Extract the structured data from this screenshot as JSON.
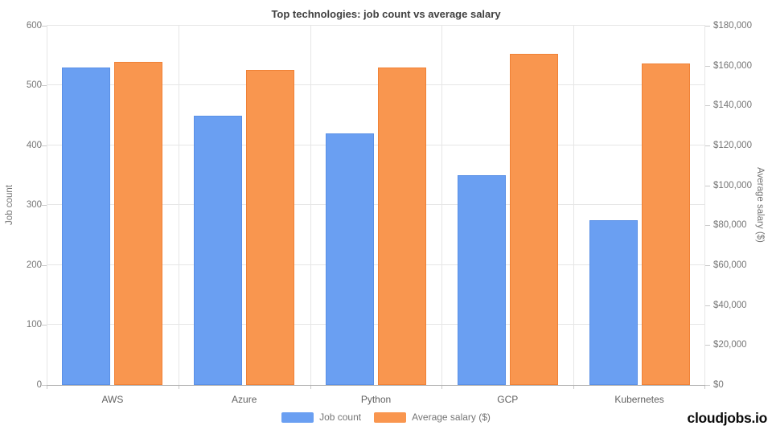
{
  "chart_data": {
    "type": "bar",
    "title": "Top technologies: job count vs average salary",
    "categories": [
      "AWS",
      "Azure",
      "Python",
      "GCP",
      "Kubernetes"
    ],
    "series": [
      {
        "name": "Job count",
        "axis": "left",
        "color": "#6A9FF2",
        "values": [
          530,
          450,
          420,
          350,
          275
        ]
      },
      {
        "name": "Average salary ($)",
        "axis": "right",
        "color": "#F9964F",
        "values": [
          162000,
          158000,
          159000,
          166000,
          161000
        ]
      }
    ],
    "left_axis": {
      "label": "Job count",
      "min": 0,
      "max": 600,
      "tick_labels": [
        "0",
        "100",
        "200",
        "300",
        "400",
        "500",
        "600"
      ]
    },
    "right_axis": {
      "label": "Average salary ($)",
      "min": 0,
      "max": 180000,
      "tick_labels": [
        "$0",
        "$20,000",
        "$40,000",
        "$60,000",
        "$80,000",
        "$100,000",
        "$120,000",
        "$140,000",
        "$160,000",
        "$180,000"
      ]
    },
    "legend": {
      "position": "bottom"
    },
    "grid": "on",
    "colors": {
      "gridline": "#e6e6e6",
      "baseline": "#b0b0b0",
      "text": "#757575"
    }
  },
  "branding": {
    "logo": "cloudjobs.io"
  }
}
